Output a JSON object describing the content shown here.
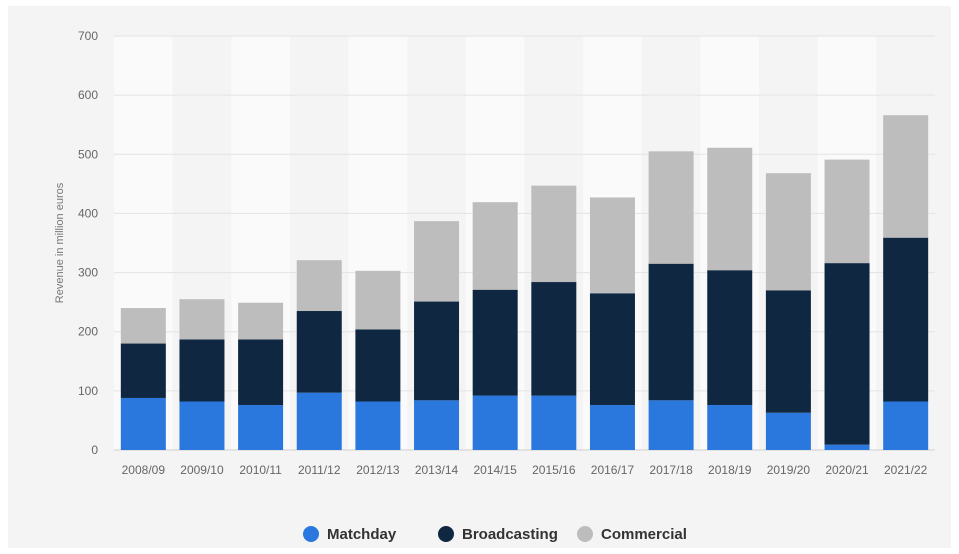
{
  "chart_data": {
    "type": "bar",
    "stacked": true,
    "categories": [
      "2008/09",
      "2009/10",
      "2010/11",
      "2011/12",
      "2012/13",
      "2013/14",
      "2014/15",
      "2015/16",
      "2016/17",
      "2017/18",
      "2018/19",
      "2019/20",
      "2020/21",
      "2021/22"
    ],
    "series": [
      {
        "name": "Matchday",
        "color": "#2a78de",
        "values": [
          88,
          82,
          76,
          97,
          82,
          84,
          92,
          92,
          76,
          84,
          76,
          63,
          9,
          82
        ]
      },
      {
        "name": "Broadcasting",
        "color": "#0f2740",
        "values": [
          92,
          105,
          111,
          138,
          122,
          167,
          179,
          192,
          189,
          231,
          228,
          207,
          307,
          277
        ]
      },
      {
        "name": "Commercial",
        "color": "#bdbdbd",
        "values": [
          60,
          68,
          62,
          86,
          99,
          136,
          148,
          163,
          162,
          190,
          207,
          198,
          175,
          207
        ]
      }
    ],
    "ylabel": "Revenue in million euros",
    "ylim": [
      0,
      700
    ],
    "yticks": [
      0,
      100,
      200,
      300,
      400,
      500,
      600,
      700
    ],
    "grid": true,
    "legend_position": "bottom"
  }
}
